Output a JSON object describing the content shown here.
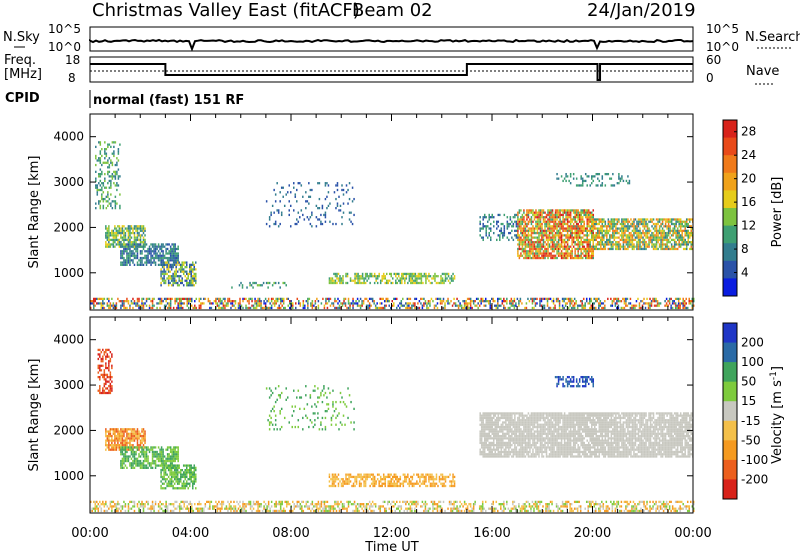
{
  "header": {
    "station": "Christmas Valley East (fitACF)",
    "beam": "Beam 02",
    "date": "24/Jan/2019"
  },
  "summary_panel": {
    "left_labels": [
      "N.Sky",
      "Freq.",
      "[MHz]",
      "CPID"
    ],
    "right_labels": [
      "N.Search",
      "Nave"
    ],
    "nsky_ticks": [
      "10^5",
      "10^0"
    ],
    "nsearch_ticks": [
      "10^5",
      "10^0"
    ],
    "freq_ticks": [
      "18",
      "8"
    ],
    "nave_ticks": [
      "60",
      "0"
    ],
    "cpid_text": "normal (fast) 151 RF"
  },
  "colors": {
    "power": [
      "#0a1de0",
      "#2a52a8",
      "#327d8e",
      "#3e9f72",
      "#7dc33f",
      "#e6cc1a",
      "#f0a21a",
      "#f07a1a",
      "#e94a19",
      "#d8221a"
    ],
    "velocity": [
      "#d8221a",
      "#ec5f1d",
      "#f59a20",
      "#f4c04a",
      "#c8c8c0",
      "#7ecb3d",
      "#3fa45c",
      "#2a6aa6",
      "#1f36c6"
    ]
  },
  "chart_data": [
    {
      "type": "heatmap",
      "name": "power-panel",
      "xlabel": "Time UT",
      "ylabel": "Slant Range [km]",
      "x_ticks": [
        "00:00",
        "04:00",
        "08:00",
        "12:00",
        "16:00",
        "20:00",
        "00:00"
      ],
      "y_ticks": [
        1000,
        2000,
        3000,
        4000
      ],
      "xlim_hours": [
        0,
        24
      ],
      "ylim_km": [
        180,
        4500
      ],
      "colorbar": {
        "label": "Power [dB]",
        "ticks": [
          4,
          8,
          12,
          16,
          20,
          24,
          28
        ],
        "range": [
          0,
          30
        ]
      },
      "regions": [
        {
          "t0": 0.0,
          "t1": 24.0,
          "r0": 200,
          "r1": 420,
          "c": [
            0,
            1,
            2,
            3,
            4,
            5,
            6,
            7,
            8,
            9
          ],
          "d": 0.5
        },
        {
          "t0": 0.6,
          "t1": 2.2,
          "r0": 1550,
          "r1": 2050,
          "c": [
            2,
            3,
            4,
            5
          ],
          "d": 0.8
        },
        {
          "t0": 1.2,
          "t1": 3.5,
          "r0": 1150,
          "r1": 1650,
          "c": [
            1,
            2,
            3
          ],
          "d": 0.7
        },
        {
          "t0": 2.8,
          "t1": 4.2,
          "r0": 700,
          "r1": 1250,
          "c": [
            1,
            2,
            4,
            5
          ],
          "d": 0.7
        },
        {
          "t0": 0.2,
          "t1": 1.2,
          "r0": 2400,
          "r1": 3900,
          "c": [
            2,
            3,
            4
          ],
          "d": 0.35
        },
        {
          "t0": 7.0,
          "t1": 10.5,
          "r0": 2000,
          "r1": 3000,
          "c": [
            1,
            2
          ],
          "d": 0.12
        },
        {
          "t0": 9.5,
          "t1": 14.5,
          "r0": 750,
          "r1": 1000,
          "c": [
            3,
            4,
            5
          ],
          "d": 0.6
        },
        {
          "t0": 5.5,
          "t1": 8.0,
          "r0": 650,
          "r1": 800,
          "c": [
            2,
            3,
            4
          ],
          "d": 0.25
        },
        {
          "t0": 15.5,
          "t1": 17.0,
          "r0": 1700,
          "r1": 2300,
          "c": [
            1,
            2,
            3
          ],
          "d": 0.35
        },
        {
          "t0": 17.0,
          "t1": 20.0,
          "r0": 1300,
          "r1": 2400,
          "c": [
            3,
            4,
            5,
            6,
            7,
            8,
            9
          ],
          "d": 0.8
        },
        {
          "t0": 20.0,
          "t1": 24.0,
          "r0": 1500,
          "r1": 2200,
          "c": [
            2,
            3,
            4,
            5,
            6,
            7
          ],
          "d": 0.75
        },
        {
          "t0": 18.5,
          "t1": 21.5,
          "r0": 2900,
          "r1": 3200,
          "c": [
            2,
            3
          ],
          "d": 0.25
        }
      ]
    },
    {
      "type": "heatmap",
      "name": "velocity-panel",
      "xlabel": "Time UT",
      "ylabel": "Slant Range [km]",
      "x_ticks": [
        "00:00",
        "04:00",
        "08:00",
        "12:00",
        "16:00",
        "20:00",
        "00:00"
      ],
      "y_ticks": [
        1000,
        2000,
        3000,
        4000
      ],
      "xlim_hours": [
        0,
        24
      ],
      "ylim_km": [
        180,
        4500
      ],
      "colorbar": {
        "label": "Velocity [m s^-1]",
        "ticks": [
          "200",
          "100",
          "50",
          "15",
          "-15",
          "-50",
          "-100",
          "-200"
        ]
      },
      "regions": [
        {
          "t0": 0.0,
          "t1": 24.0,
          "r0": 200,
          "r1": 420,
          "c": [
            2,
            3,
            4,
            5
          ],
          "d": 0.5
        },
        {
          "t0": 0.6,
          "t1": 2.2,
          "r0": 1550,
          "r1": 2050,
          "c": [
            1,
            2,
            3
          ],
          "d": 0.8
        },
        {
          "t0": 1.2,
          "t1": 3.5,
          "r0": 1150,
          "r1": 1650,
          "c": [
            5,
            6
          ],
          "d": 0.7
        },
        {
          "t0": 2.8,
          "t1": 4.2,
          "r0": 700,
          "r1": 1250,
          "c": [
            5,
            6
          ],
          "d": 0.7
        },
        {
          "t0": 0.3,
          "t1": 0.9,
          "r0": 2800,
          "r1": 3800,
          "c": [
            0,
            1
          ],
          "d": 0.5
        },
        {
          "t0": 7.0,
          "t1": 10.5,
          "r0": 2000,
          "r1": 3000,
          "c": [
            5,
            6
          ],
          "d": 0.12
        },
        {
          "t0": 9.5,
          "t1": 14.5,
          "r0": 750,
          "r1": 1050,
          "c": [
            2,
            3
          ],
          "d": 0.6
        },
        {
          "t0": 15.5,
          "t1": 24.0,
          "r0": 1400,
          "r1": 2400,
          "c": [
            4
          ],
          "d": 0.85
        },
        {
          "t0": 18.5,
          "t1": 20.0,
          "r0": 2950,
          "r1": 3200,
          "c": [
            7,
            8
          ],
          "d": 0.5
        }
      ]
    }
  ]
}
